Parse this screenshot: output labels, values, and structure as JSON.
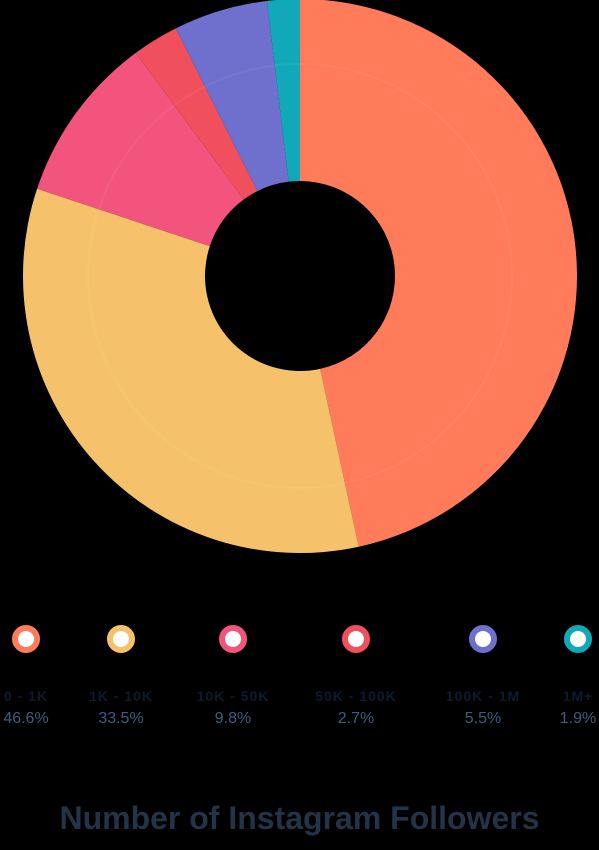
{
  "chart_data": {
    "type": "pie",
    "title": "Number of Instagram Followers",
    "categories": [
      "0 - 1K",
      "1K - 10K",
      "10K - 50K",
      "50K - 100K",
      "100K - 1M",
      "1M+"
    ],
    "values": [
      46.6,
      33.5,
      9.8,
      2.7,
      5.5,
      1.9
    ],
    "labels": [
      "46.6%",
      "33.5%",
      "9.8%",
      "2.7%",
      "5.5%",
      "1.9%"
    ],
    "colors": [
      "#ff7b5a",
      "#f5c26b",
      "#f2547d",
      "#f0505d",
      "#6f6fce",
      "#11a9b9"
    ],
    "donut": true,
    "legend_position": "bottom"
  }
}
